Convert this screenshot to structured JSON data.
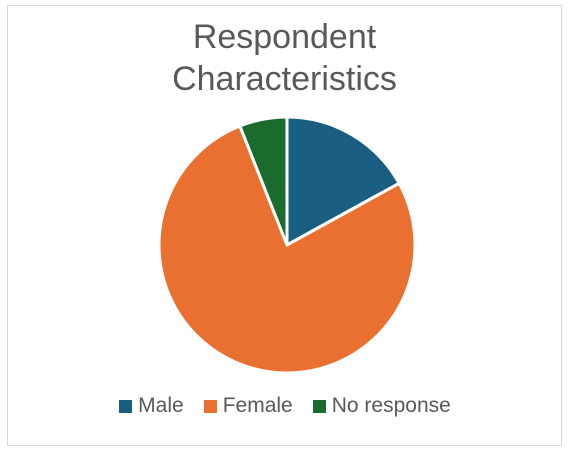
{
  "chart_data": {
    "type": "pie",
    "title_lines": [
      "Respondent",
      "Characteristics"
    ],
    "categories": [
      "Male",
      "Female",
      "No response"
    ],
    "values": [
      17,
      77,
      6
    ],
    "colors": [
      "#1a5f82",
      "#ea7032",
      "#1b6b2c"
    ],
    "legend_position": "bottom"
  }
}
